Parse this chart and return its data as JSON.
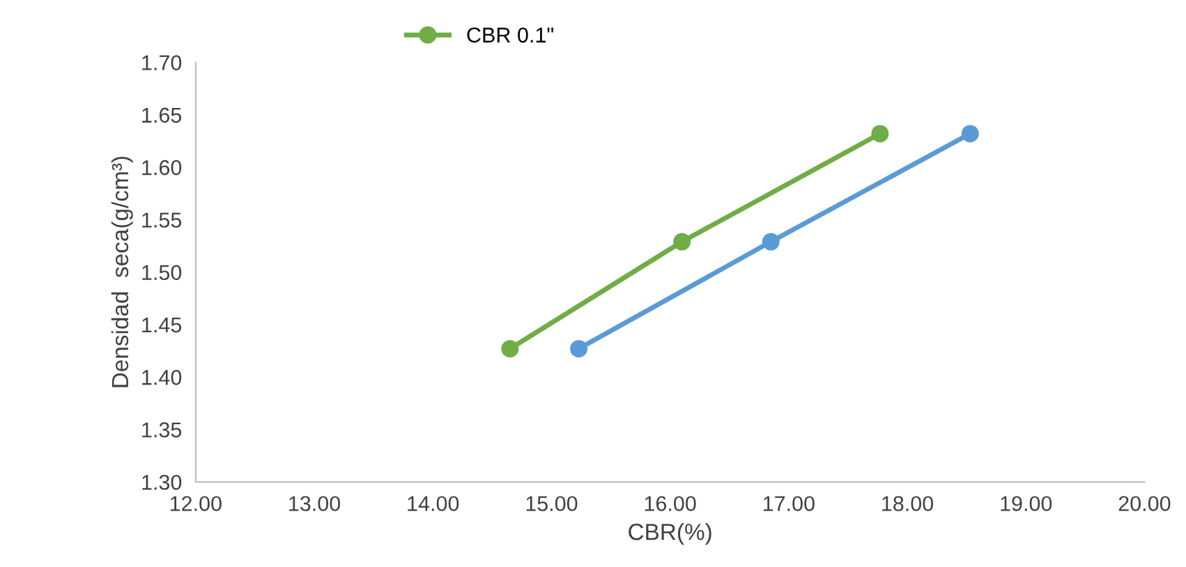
{
  "chart_data": {
    "type": "line",
    "xlabel": "CBR(%)",
    "ylabel": "Densidad  seca(g/cm³)",
    "series": [
      {
        "name": "CBR 0.1\"",
        "color": "#70ad47",
        "x": [
          14.65,
          16.1,
          17.77
        ],
        "values": [
          1.427,
          1.529,
          1.632
        ]
      },
      {
        "color": "#5b9bd5",
        "x": [
          15.23,
          16.85,
          18.53
        ],
        "values": [
          1.427,
          1.529,
          1.632
        ]
      }
    ],
    "xlim": [
      12,
      20
    ],
    "ylim": [
      1.3,
      1.7
    ],
    "xticks": [
      {
        "value": 12,
        "label": "12.00"
      },
      {
        "value": 13,
        "label": "13.00"
      },
      {
        "value": 14,
        "label": "14.00"
      },
      {
        "value": 15,
        "label": "15.00"
      },
      {
        "value": 16,
        "label": "16.00"
      },
      {
        "value": 17,
        "label": "17.00"
      },
      {
        "value": 18,
        "label": "18.00"
      },
      {
        "value": 19,
        "label": "19.00"
      },
      {
        "value": 20,
        "label": "20.00"
      }
    ],
    "yticks": [
      {
        "value": 1.3,
        "label": "1.30"
      },
      {
        "value": 1.35,
        "label": "1.35"
      },
      {
        "value": 1.4,
        "label": "1.40"
      },
      {
        "value": 1.45,
        "label": "1.45"
      },
      {
        "value": 1.5,
        "label": "1.50"
      },
      {
        "value": 1.55,
        "label": "1.55"
      },
      {
        "value": 1.6,
        "label": "1.60"
      },
      {
        "value": 1.65,
        "label": "1.65"
      },
      {
        "value": 1.7,
        "label": "1.70"
      }
    ],
    "marker": "circle",
    "line_style": "solid",
    "grid": false,
    "legend": "top"
  }
}
